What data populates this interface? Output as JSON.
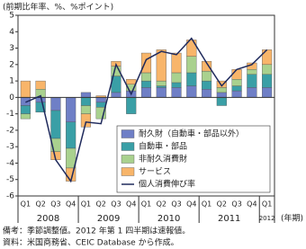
{
  "chart_data": {
    "type": "bar",
    "y_axis_label": "(前期比年率、%、%ポイント)",
    "x_unit_label": "(年期)",
    "categories": [
      "Q1",
      "Q2",
      "Q3",
      "Q4",
      "Q1",
      "Q2",
      "Q3",
      "Q4",
      "Q1",
      "Q2",
      "Q3",
      "Q4",
      "Q1",
      "Q2",
      "Q3",
      "Q4",
      "Q1"
    ],
    "x_group_labels": [
      "2008",
      "2009",
      "2010",
      "2011",
      "2012"
    ],
    "series": [
      {
        "name": "耐久財（自動車・部品以外）",
        "color": "#6f7fc6",
        "values": [
          -0.5,
          -0.3,
          -0.8,
          -1.5,
          0.3,
          -0.3,
          0.3,
          0.4,
          0.6,
          0.6,
          0.6,
          0.7,
          0.5,
          0.3,
          0.4,
          0.6,
          0.6
        ]
      },
      {
        "name": "自動車・部品",
        "color": "#3a9fa6",
        "values": [
          -0.5,
          -0.6,
          -1.7,
          -1.6,
          -0.5,
          -0.3,
          1.0,
          -1.0,
          0.4,
          0.1,
          0.3,
          0.8,
          0.5,
          -0.5,
          0.3,
          0.8,
          0.8
        ]
      },
      {
        "name": "非耐久消費財",
        "color": "#a9d18e",
        "values": [
          -0.3,
          0.5,
          -0.8,
          -1.2,
          -0.5,
          -0.7,
          0.6,
          0.4,
          0.5,
          0.3,
          0.6,
          1.0,
          0.6,
          0.3,
          0.4,
          0.3,
          0.6
        ]
      },
      {
        "name": "サービス",
        "color": "#f8b56a",
        "values": [
          1.0,
          0.5,
          -0.5,
          -0.8,
          -0.8,
          0.1,
          0.3,
          0.3,
          1.2,
          1.9,
          1.2,
          1.0,
          0.6,
          0.4,
          0.6,
          0.4,
          0.9
        ]
      },
      {
        "name": "個人消費伸び率",
        "type": "line",
        "color": "#1f2a5c",
        "values": [
          -0.3,
          0.1,
          -3.8,
          -5.1,
          -1.5,
          -1.6,
          2.0,
          0.2,
          2.3,
          2.8,
          2.6,
          3.6,
          2.1,
          0.7,
          1.7,
          2.0,
          2.9
        ]
      }
    ],
    "ylim": [
      -6,
      5
    ],
    "yticks": [
      -6,
      -5,
      -4,
      -3,
      -2,
      -1,
      0,
      1,
      2,
      3,
      4,
      5
    ],
    "grid": false,
    "legend": "bottom-right",
    "notes": [
      "備考：季節調整値。2012 年第 1 四半期は速報値。",
      "資料：米国商務省、CEIC Database から作成。"
    ]
  }
}
